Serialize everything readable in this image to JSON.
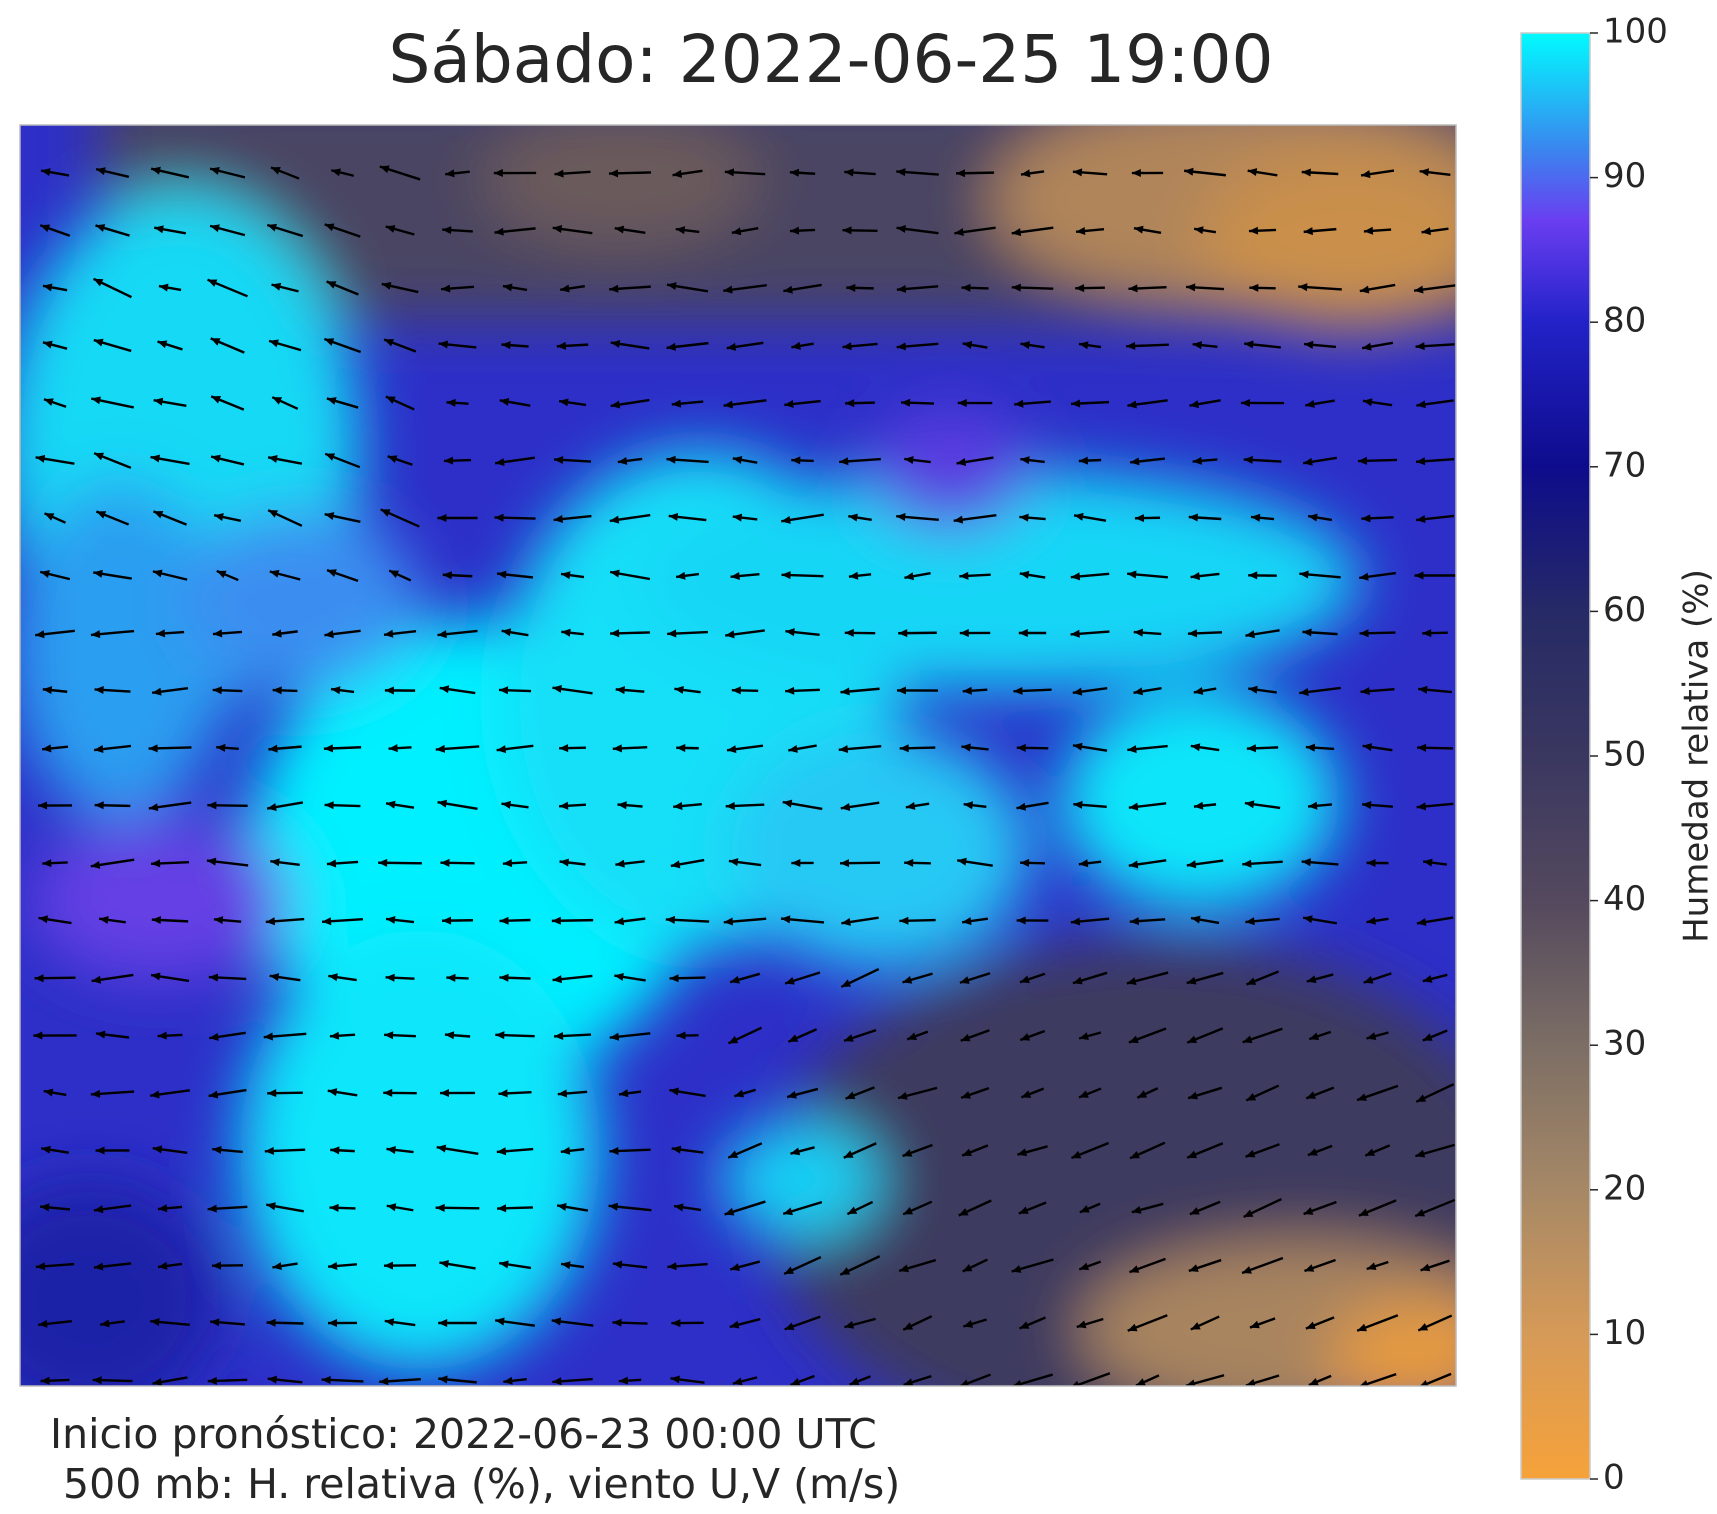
{
  "header": {
    "title": "Sábado: 2022-06-25 19:00"
  },
  "colorbar": {
    "label": "Humedad relativa (%)",
    "lim": [
      0,
      100
    ],
    "ticks": [
      0,
      10,
      20,
      30,
      40,
      50,
      60,
      70,
      80,
      90,
      100
    ]
  },
  "footer": {
    "line1": "Inicio pronóstico: 2022-06-23 00:00 UTC",
    "line2": " 500 mb: H. relativa (%), viento U,V (m/s)"
  }
}
